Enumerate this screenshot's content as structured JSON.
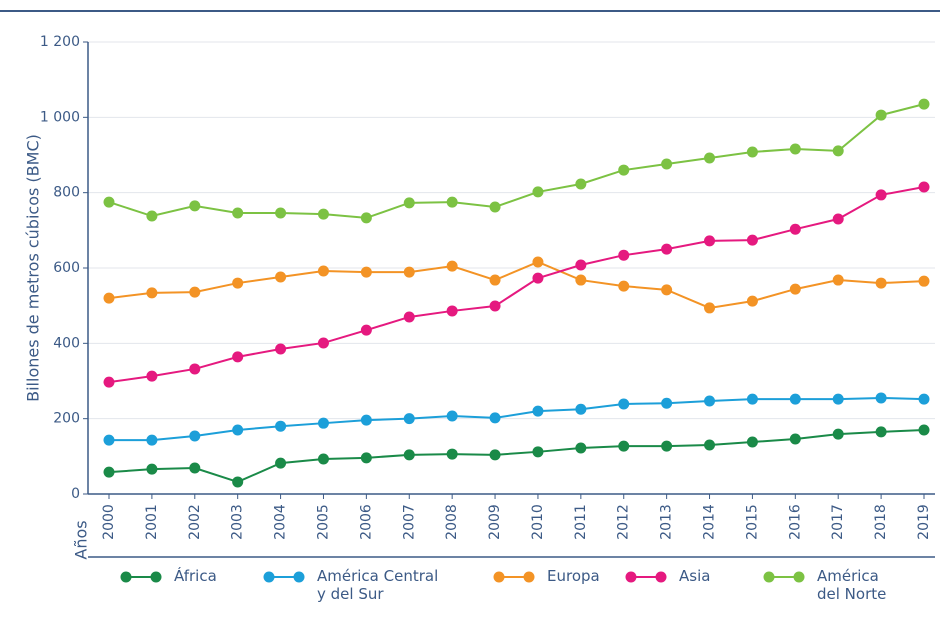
{
  "chart_data": {
    "type": "line",
    "y_label": "Billones de metros cúbicos (BMC)",
    "x_label": "Años",
    "categories": [
      "2000",
      "2001",
      "2002",
      "2003",
      "2004",
      "2005",
      "2006",
      "2007",
      "2008",
      "2009",
      "2010",
      "2011",
      "2012",
      "2013",
      "2014",
      "2015",
      "2016",
      "2017",
      "2018",
      "2019"
    ],
    "ylim": [
      0,
      1200
    ],
    "yticks": [
      0,
      200,
      400,
      600,
      800,
      {
        "value": 1000,
        "label": "1 000"
      },
      {
        "value": 1200,
        "label": "1 200"
      }
    ],
    "grid": true,
    "legend": "bottom",
    "series": [
      {
        "name": "África",
        "color": "#1a8a48",
        "values": [
          58,
          66,
          69,
          32,
          82,
          93,
          96,
          104,
          106,
          104,
          112,
          122,
          127,
          127,
          130,
          138,
          146,
          159,
          165,
          170
        ]
      },
      {
        "name": "América Central\ny del Sur",
        "color": "#1c9fd9",
        "values": [
          143,
          143,
          154,
          170,
          180,
          188,
          196,
          200,
          207,
          202,
          220,
          225,
          239,
          241,
          247,
          252,
          252,
          252,
          255,
          252
        ]
      },
      {
        "name": "Europa",
        "color": "#f39325",
        "values": [
          520,
          534,
          536,
          560,
          576,
          592,
          589,
          589,
          605,
          568,
          616,
          568,
          552,
          542,
          494,
          512,
          544,
          568,
          560,
          565
        ]
      },
      {
        "name": "Asia",
        "color": "#e5197f",
        "values": [
          297,
          313,
          332,
          364,
          385,
          401,
          435,
          470,
          486,
          499,
          573,
          608,
          634,
          650,
          672,
          674,
          703,
          730,
          794,
          815
        ]
      },
      {
        "name": "América\ndel Norte",
        "color": "#7cc243",
        "values": [
          775,
          738,
          765,
          746,
          746,
          743,
          733,
          773,
          775,
          762,
          802,
          823,
          860,
          876,
          892,
          908,
          916,
          911,
          1006,
          1035
        ]
      }
    ]
  }
}
